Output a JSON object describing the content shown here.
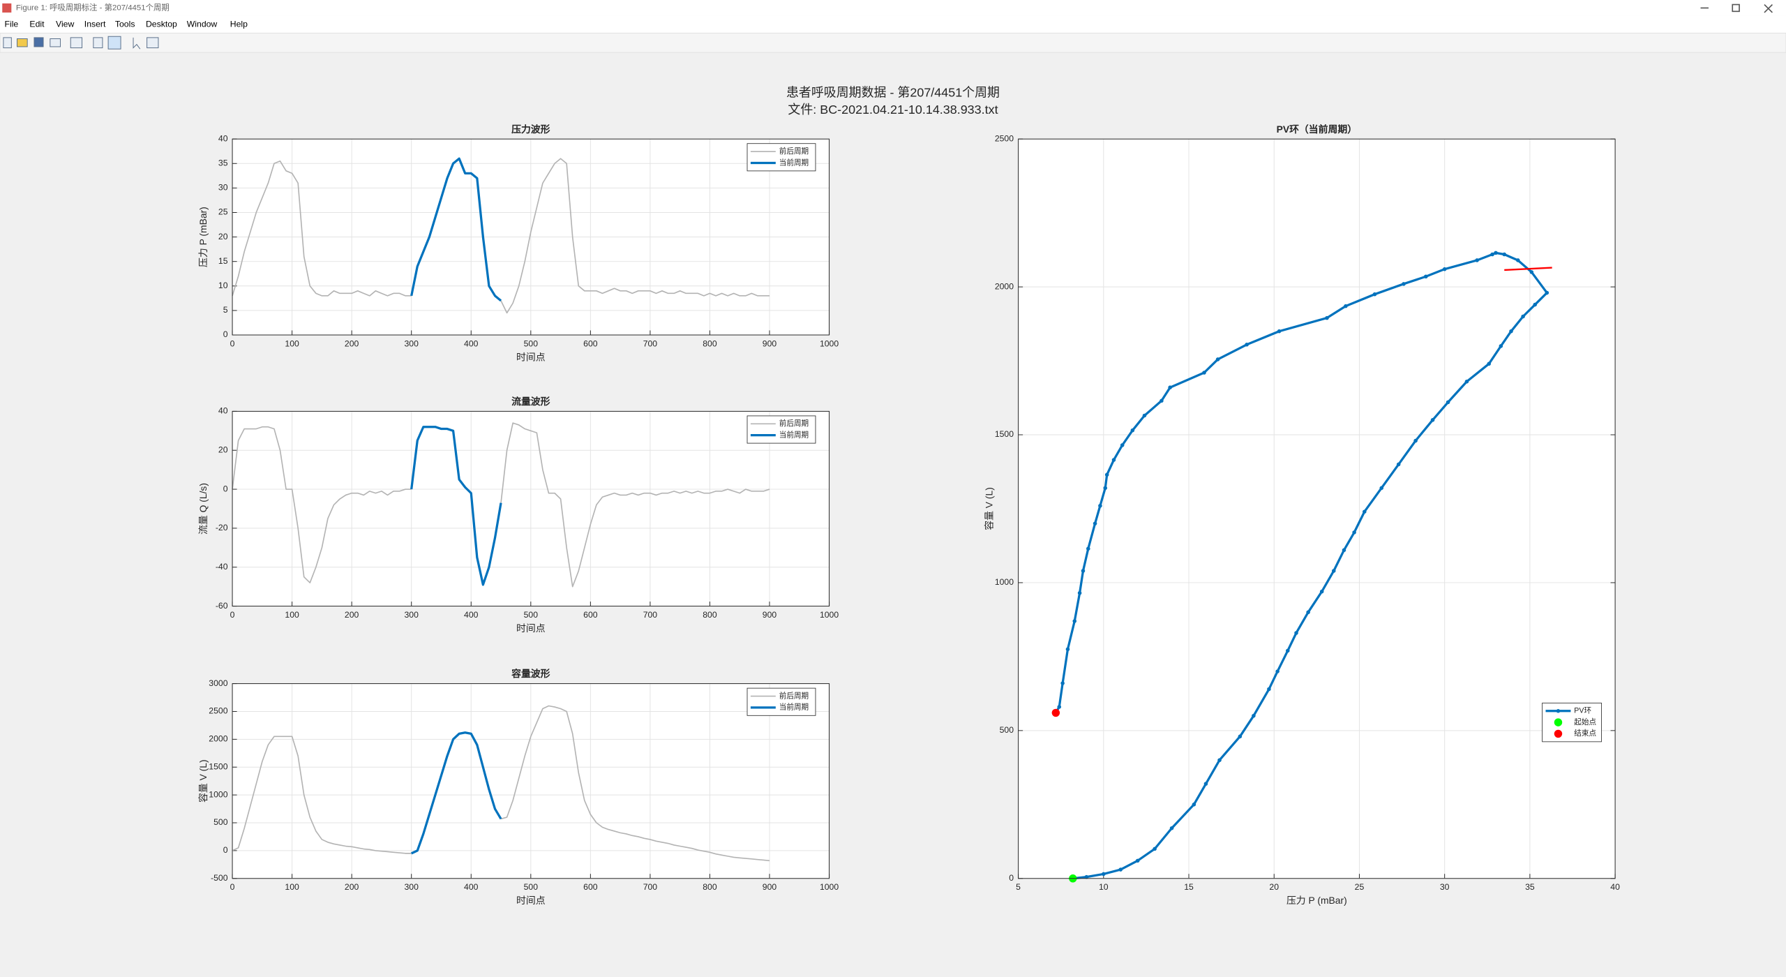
{
  "window": {
    "title": "Figure 1: 呼吸周期标注 - 第207/4451个周期",
    "menu": [
      "File",
      "Edit",
      "View",
      "Insert",
      "Tools",
      "Desktop",
      "Window",
      "Help"
    ]
  },
  "suptitle": [
    "患者呼吸周期数据 - 第207/4451个周期",
    "文件: BC-2021.04.21-10.14.38.933.txt"
  ],
  "chart_data": [
    {
      "type": "line",
      "title": "压力波形",
      "xlabel": "时间点",
      "ylabel": "压力 P (mBar)",
      "x": [
        0,
        10,
        20,
        30,
        40,
        50,
        60,
        70,
        80,
        90,
        100,
        110,
        120,
        130,
        140,
        150,
        160,
        170,
        180,
        190,
        200,
        210,
        220,
        230,
        240,
        250,
        260,
        270,
        280,
        290,
        300,
        310,
        320,
        330,
        340,
        350,
        360,
        370,
        380,
        390,
        400,
        410,
        420,
        430,
        440,
        450,
        460,
        470,
        480,
        490,
        500,
        510,
        520,
        530,
        540,
        550,
        560,
        570,
        580,
        590,
        600,
        610,
        620,
        630,
        640,
        650,
        660,
        670,
        680,
        690,
        700,
        710,
        720,
        730,
        740,
        750,
        760,
        770,
        780,
        790,
        800,
        810,
        820,
        830,
        840,
        850,
        860,
        870,
        880,
        890,
        900
      ],
      "series": [
        {
          "name": "前后周期",
          "color": "#b3b3b3",
          "width": 1,
          "values": [
            8,
            12,
            17,
            21,
            25,
            28,
            31,
            35,
            35.5,
            33.5,
            33,
            31,
            16,
            10,
            8.5,
            8,
            8,
            9,
            8.5,
            8.5,
            8.5,
            9,
            8.5,
            8,
            9,
            8.5,
            8,
            8.5,
            8.5,
            8,
            8,
            null,
            null,
            null,
            null,
            null,
            null,
            null,
            null,
            null,
            null,
            null,
            null,
            null,
            null,
            7,
            4.5,
            6.5,
            10,
            15,
            21,
            26,
            31,
            33,
            35,
            36,
            35,
            20,
            10,
            9,
            9,
            9,
            8.5,
            9,
            9.5,
            9,
            9,
            8.5,
            9,
            9,
            9,
            8.5,
            9,
            8.5,
            8.5,
            9,
            8.5,
            8.5,
            8.5,
            8,
            8.5,
            8,
            8.5,
            8,
            8.5,
            8,
            8,
            8.5,
            8,
            8,
            8
          ]
        },
        {
          "name": "当前周期",
          "color": "#0072bd",
          "width": 2,
          "values": [
            null,
            null,
            null,
            null,
            null,
            null,
            null,
            null,
            null,
            null,
            null,
            null,
            null,
            null,
            null,
            null,
            null,
            null,
            null,
            null,
            null,
            null,
            null,
            null,
            null,
            null,
            null,
            null,
            null,
            null,
            8,
            14,
            17,
            20,
            24,
            28,
            32,
            35,
            36,
            33,
            33,
            32,
            20,
            10,
            8,
            7,
            null,
            null,
            null,
            null,
            null,
            null,
            null,
            null,
            null,
            null,
            null,
            null,
            null,
            null,
            null,
            null,
            null,
            null,
            null,
            null,
            null,
            null,
            null,
            null,
            null,
            null,
            null,
            null,
            null,
            null,
            null,
            null,
            null,
            null,
            null,
            null,
            null,
            null,
            null,
            null,
            null,
            null,
            null,
            null,
            null
          ]
        }
      ],
      "xlim": [
        0,
        1000
      ],
      "xticks": [
        0,
        100,
        200,
        300,
        400,
        500,
        600,
        700,
        800,
        900,
        1000
      ],
      "ylim": [
        0,
        40
      ],
      "yticks": [
        0,
        5,
        10,
        15,
        20,
        25,
        30,
        35,
        40
      ],
      "grid": true,
      "legend": "northeast"
    },
    {
      "type": "line",
      "title": "流量波形",
      "xlabel": "时间点",
      "ylabel": "流量 Q (L/s)",
      "x": [
        0,
        10,
        20,
        30,
        40,
        50,
        60,
        70,
        80,
        90,
        100,
        110,
        120,
        130,
        140,
        150,
        160,
        170,
        180,
        190,
        200,
        210,
        220,
        230,
        240,
        250,
        260,
        270,
        280,
        290,
        300,
        310,
        320,
        330,
        340,
        350,
        360,
        370,
        380,
        390,
        400,
        410,
        420,
        430,
        440,
        450,
        460,
        470,
        480,
        490,
        500,
        510,
        520,
        530,
        540,
        550,
        560,
        570,
        580,
        590,
        600,
        610,
        620,
        630,
        640,
        650,
        660,
        670,
        680,
        690,
        700,
        710,
        720,
        730,
        740,
        750,
        760,
        770,
        780,
        790,
        800,
        810,
        820,
        830,
        840,
        850,
        860,
        870,
        880,
        890,
        900
      ],
      "series": [
        {
          "name": "前后周期",
          "color": "#b3b3b3",
          "width": 1,
          "values": [
            0,
            25,
            31,
            31,
            31,
            32,
            32,
            31,
            20,
            0,
            0,
            -20,
            -45,
            -48,
            -40,
            -30,
            -15,
            -8,
            -5,
            -3,
            -2,
            -2,
            -3,
            -1,
            -2,
            -1,
            -3,
            -1,
            -1,
            0,
            0,
            null,
            null,
            null,
            null,
            null,
            null,
            null,
            null,
            null,
            null,
            null,
            null,
            null,
            null,
            -7,
            20,
            34,
            33,
            31,
            30,
            29,
            10,
            -2,
            -2,
            -5,
            -30,
            -50,
            -42,
            -30,
            -18,
            -8,
            -4,
            -3,
            -2,
            -3,
            -3,
            -2,
            -3,
            -2,
            -2,
            -3,
            -2,
            -2,
            -1,
            -2,
            -1,
            -2,
            -1,
            -2,
            -2,
            -1,
            -1,
            0,
            -1,
            -2,
            0,
            -1,
            -1,
            -1,
            0
          ]
        },
        {
          "name": "当前周期",
          "color": "#0072bd",
          "width": 2,
          "values": [
            null,
            null,
            null,
            null,
            null,
            null,
            null,
            null,
            null,
            null,
            null,
            null,
            null,
            null,
            null,
            null,
            null,
            null,
            null,
            null,
            null,
            null,
            null,
            null,
            null,
            null,
            null,
            null,
            null,
            null,
            0,
            25,
            32,
            32,
            32,
            31,
            31,
            30,
            5,
            1,
            -2,
            -35,
            -49,
            -40,
            -25,
            -7,
            null,
            null,
            null,
            null,
            null,
            null,
            null,
            null,
            null,
            null,
            null,
            null,
            null,
            null,
            null,
            null,
            null,
            null,
            null,
            null,
            null,
            null,
            null,
            null,
            null,
            null,
            null,
            null,
            null,
            null,
            null,
            null,
            null,
            null,
            null,
            null,
            null,
            null,
            null,
            null,
            null,
            null,
            null,
            null,
            null
          ]
        }
      ],
      "xlim": [
        0,
        1000
      ],
      "xticks": [
        0,
        100,
        200,
        300,
        400,
        500,
        600,
        700,
        800,
        900,
        1000
      ],
      "ylim": [
        -60,
        40
      ],
      "yticks": [
        -60,
        -40,
        -20,
        0,
        20,
        40
      ],
      "grid": true,
      "legend": "northeast"
    },
    {
      "type": "line",
      "title": "容量波形",
      "xlabel": "时间点",
      "ylabel": "容量 V (L)",
      "x": [
        0,
        10,
        20,
        30,
        40,
        50,
        60,
        70,
        80,
        90,
        100,
        110,
        120,
        130,
        140,
        150,
        160,
        170,
        180,
        190,
        200,
        210,
        220,
        230,
        240,
        250,
        260,
        270,
        280,
        290,
        300,
        310,
        320,
        330,
        340,
        350,
        360,
        370,
        380,
        390,
        400,
        410,
        420,
        430,
        440,
        450,
        460,
        470,
        480,
        490,
        500,
        510,
        520,
        530,
        540,
        550,
        560,
        570,
        580,
        590,
        600,
        610,
        620,
        630,
        640,
        650,
        660,
        670,
        680,
        690,
        700,
        710,
        720,
        730,
        740,
        750,
        760,
        770,
        780,
        790,
        800,
        810,
        820,
        830,
        840,
        850,
        860,
        870,
        880,
        890,
        900
      ],
      "series": [
        {
          "name": "前后周期",
          "color": "#b3b3b3",
          "width": 1,
          "values": [
            0,
            50,
            400,
            800,
            1200,
            1600,
            1900,
            2050,
            2050,
            2050,
            2050,
            1700,
            1000,
            600,
            350,
            200,
            150,
            120,
            100,
            80,
            70,
            50,
            30,
            20,
            0,
            -10,
            -20,
            -30,
            -40,
            -50,
            -50,
            null,
            null,
            null,
            null,
            null,
            null,
            null,
            null,
            null,
            null,
            null,
            null,
            null,
            null,
            570,
            600,
            900,
            1300,
            1700,
            2050,
            2300,
            2550,
            2600,
            2580,
            2550,
            2500,
            2100,
            1400,
            900,
            650,
            500,
            420,
            380,
            350,
            320,
            300,
            270,
            250,
            220,
            200,
            170,
            150,
            130,
            100,
            80,
            60,
            40,
            10,
            -10,
            -30,
            -60,
            -80,
            -100,
            -120,
            -130,
            -140,
            -150,
            -160,
            -170,
            -180
          ]
        },
        {
          "name": "当前周期",
          "color": "#0072bd",
          "width": 2,
          "values": [
            null,
            null,
            null,
            null,
            null,
            null,
            null,
            null,
            null,
            null,
            null,
            null,
            null,
            null,
            null,
            null,
            null,
            null,
            null,
            null,
            null,
            null,
            null,
            null,
            null,
            null,
            null,
            null,
            null,
            null,
            -50,
            0,
            300,
            650,
            1000,
            1350,
            1700,
            2000,
            2100,
            2120,
            2100,
            1900,
            1500,
            1100,
            750,
            570,
            null,
            null,
            null,
            null,
            null,
            null,
            null,
            null,
            null,
            null,
            null,
            null,
            null,
            null,
            null,
            null,
            null,
            null,
            null,
            null,
            null,
            null,
            null,
            null,
            null,
            null,
            null,
            null,
            null,
            null,
            null,
            null,
            null,
            null,
            null,
            null,
            null,
            null,
            null,
            null,
            null,
            null,
            null,
            null,
            null
          ]
        }
      ],
      "xlim": [
        0,
        1000
      ],
      "xticks": [
        0,
        100,
        200,
        300,
        400,
        500,
        600,
        700,
        800,
        900,
        1000
      ],
      "ylim": [
        -500,
        3000
      ],
      "yticks": [
        -500,
        0,
        500,
        1000,
        1500,
        2000,
        2500,
        3000
      ],
      "grid": true,
      "legend": "northeast"
    },
    {
      "type": "line",
      "title": "PV环（当前周期）",
      "xlabel": "压力 P (mBar)",
      "ylabel": "容量 V (L)",
      "series": [
        {
          "name": "PV环",
          "color": "#0072bd",
          "width": 2,
          "marker": "circle",
          "line": true,
          "x": [
            8.2,
            9,
            10,
            11,
            12,
            13,
            14,
            15.3,
            16,
            16.8,
            18,
            18.8,
            19.7,
            20.2,
            20.8,
            21.3,
            22,
            22.8,
            23.5,
            24.1,
            24.7,
            25.3,
            26.3,
            27.3,
            28.3,
            29.3,
            30.2,
            31.3,
            32.6,
            33.3,
            33.9,
            34.6,
            35.3,
            36,
            35.1,
            34.3,
            33.5,
            33,
            32.8,
            31.9,
            30,
            28.9,
            27.6,
            25.9,
            24.2,
            23.1,
            20.3,
            18.4,
            16.7,
            15.9,
            13.9,
            13.4,
            12.4,
            11.7,
            11.1,
            10.6,
            10.2,
            10.1,
            9.8,
            9.5,
            9.1,
            8.8,
            8.6,
            8.3,
            7.9,
            7.6,
            7.4,
            7.2
          ],
          "values": [
            0,
            5,
            15,
            30,
            60,
            100,
            170,
            250,
            320,
            400,
            480,
            550,
            640,
            700,
            770,
            830,
            900,
            970,
            1040,
            1110,
            1170,
            1240,
            1320,
            1400,
            1480,
            1550,
            1610,
            1680,
            1740,
            1800,
            1850,
            1900,
            1940,
            1980,
            2050,
            2090,
            2110,
            2115,
            2110,
            2090,
            2060,
            2035,
            2010,
            1975,
            1935,
            1895,
            1850,
            1805,
            1755,
            1710,
            1660,
            1615,
            1565,
            1515,
            1465,
            1415,
            1365,
            1320,
            1260,
            1200,
            1115,
            1040,
            965,
            870,
            775,
            660,
            580,
            560
          ]
        },
        {
          "name": "起始点",
          "color": "#00ff00",
          "marker": "big",
          "line": false,
          "x": [
            8.2
          ],
          "values": [
            0
          ]
        },
        {
          "name": "结束点",
          "color": "#ff0000",
          "marker": "big",
          "line": false,
          "x": [
            7.2
          ],
          "values": [
            560
          ]
        },
        {
          "color": "#ff0000",
          "width": 1.5,
          "line": true,
          "x": [
            33.5,
            36.3
          ],
          "values": [
            2057,
            2065
          ]
        }
      ],
      "xlim": [
        5,
        40
      ],
      "xticks": [
        5,
        10,
        15,
        20,
        25,
        30,
        35,
        40
      ],
      "ylim": [
        0,
        2500
      ],
      "yticks": [
        0,
        500,
        1000,
        1500,
        2000,
        2500
      ],
      "grid": true,
      "legend": "southeast"
    }
  ]
}
